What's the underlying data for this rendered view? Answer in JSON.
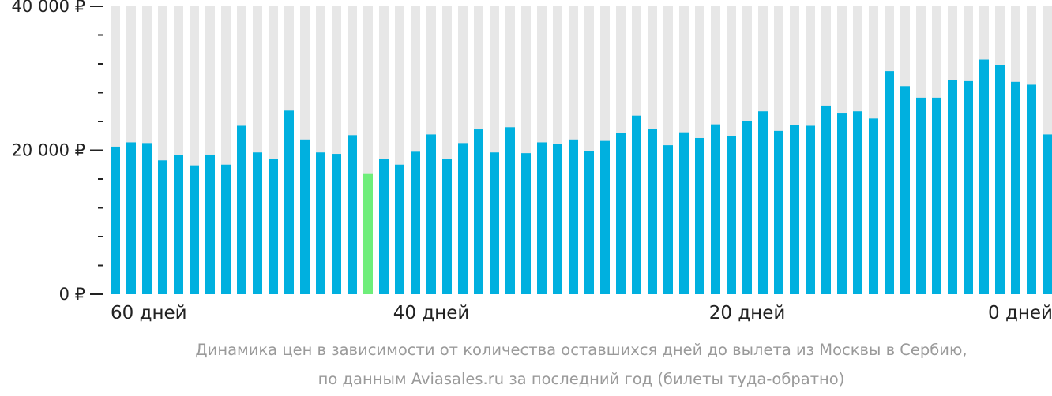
{
  "chart_data": {
    "type": "bar",
    "caption": [
      "Динамика цен в зависимости от количества оставшихся дней до вылета из Москвы в Сербию,",
      "по данным Aviasales.ru за последний год (билеты туда-обратно)"
    ],
    "yticks": [
      {
        "value": 0,
        "label": "0 ₽"
      },
      {
        "value": 20000,
        "label": "20 000 ₽"
      },
      {
        "value": 40000,
        "label": "40 000 ₽"
      }
    ],
    "ylim": [
      0,
      40000
    ],
    "y_minor_step": 4000,
    "xlim": [
      60,
      0
    ],
    "xticks": [
      {
        "days": 60,
        "label": "60 дней"
      },
      {
        "days": 40,
        "label": "40 дней"
      },
      {
        "days": 20,
        "label": "20 дней"
      },
      {
        "days": 0,
        "label": "0 дней"
      }
    ],
    "colors": {
      "bar": "#00b0df",
      "highlight": "#6fee7a",
      "background_column": "#e7e7e7",
      "axis": "#222222"
    },
    "highlight_index": 16,
    "values": [
      20500,
      21100,
      21000,
      18600,
      19300,
      17900,
      19400,
      18000,
      23400,
      19700,
      18800,
      25500,
      21500,
      19700,
      19500,
      22100,
      16800,
      18800,
      18000,
      19800,
      22200,
      18800,
      21000,
      22900,
      19700,
      23200,
      19600,
      21100,
      20900,
      21500,
      19900,
      21300,
      22400,
      24800,
      23000,
      20700,
      22500,
      21700,
      23600,
      22000,
      24100,
      25400,
      22700,
      23500,
      23400,
      26200,
      25200,
      25400,
      24400,
      31000,
      28900,
      27300,
      27300,
      29700,
      29600,
      32600,
      31800,
      29500,
      29100,
      22200
    ]
  }
}
